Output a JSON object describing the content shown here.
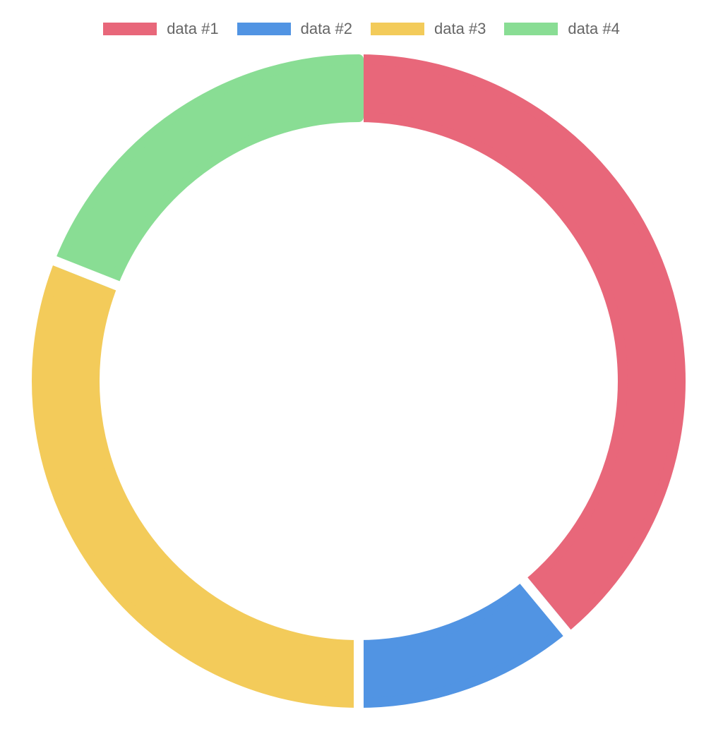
{
  "chart_data": {
    "type": "doughnut",
    "legend_position": "top",
    "series": [
      {
        "name": "data #1",
        "value": 39,
        "color": "#E8677A"
      },
      {
        "name": "data #2",
        "value": 11,
        "color": "#5194E3"
      },
      {
        "name": "data #3",
        "value": 31,
        "color": "#F3CB5A"
      },
      {
        "name": "data #4",
        "value": 19,
        "color": "#89DD94"
      }
    ]
  }
}
